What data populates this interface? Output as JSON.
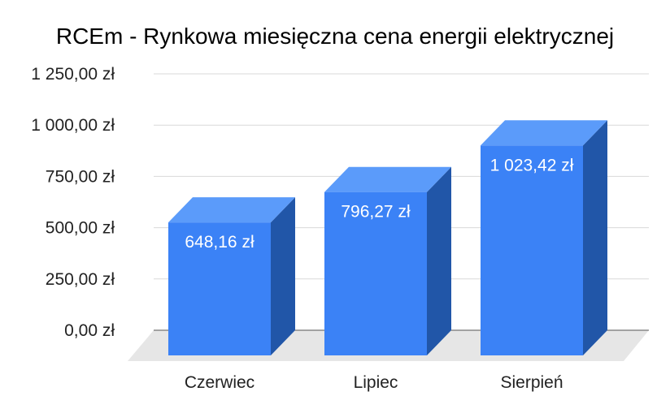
{
  "chart_data": {
    "type": "bar",
    "title": "RCEm - Rynkowa miesięczna cena energii elektrycznej",
    "categories": [
      "Czerwiec",
      "Lipiec",
      "Sierpień"
    ],
    "values": [
      648.16,
      796.27,
      1023.42
    ],
    "data_labels": [
      "648,16 zł",
      "796,27 zł",
      "1 023,42 zł"
    ],
    "ylim": [
      0,
      1250
    ],
    "yticks": [
      0,
      250,
      500,
      750,
      1000,
      1250
    ],
    "ytick_labels": [
      "0,00 zł",
      "250,00 zł",
      "500,00 zł",
      "750,00 zł",
      "1 000,00 zł",
      "1 250,00 zł"
    ],
    "grid": true,
    "legend": "none",
    "style": "3d",
    "colors": {
      "bar_front": "#3b82f6",
      "bar_top": "#5b9bfa",
      "bar_side": "#2156a8",
      "floor": "#e6e6e6",
      "grid": "#d9d9d9"
    }
  }
}
